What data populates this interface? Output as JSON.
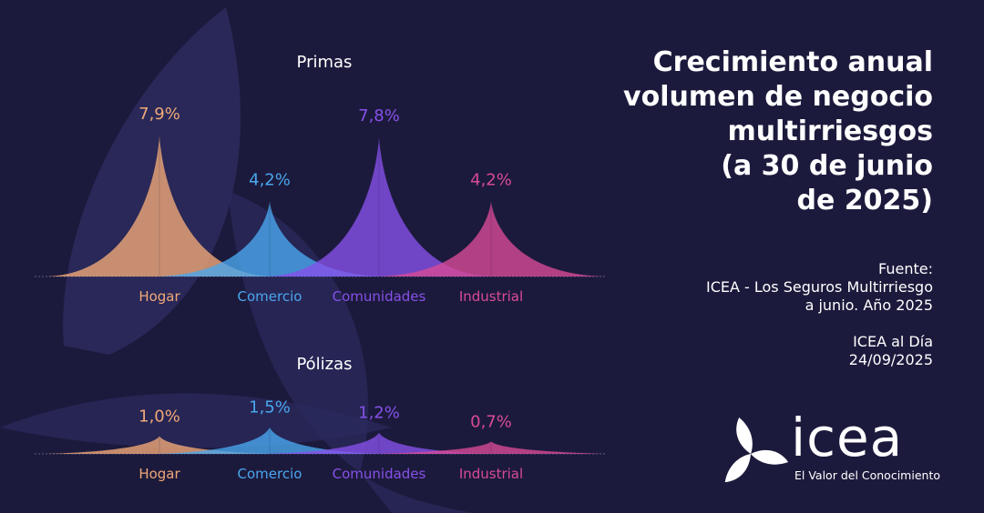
{
  "title_lines": [
    "Crecimiento anual",
    "volumen de negocio",
    "multirriesgos",
    "(a 30 de junio",
    "de 2025)"
  ],
  "source": {
    "label": "Fuente:",
    "line1": "ICEA - Los Seguros Multirriesgo",
    "line2": "a junio. Año 2025",
    "pub": "ICEA al Día",
    "date": "24/09/2025"
  },
  "logo": {
    "word": "icea",
    "tagline": "El Valor del Conocimiento"
  },
  "colors": {
    "Hogar": "#f0a878",
    "Comercio": "#4aa6ee",
    "Comunidades": "#8650e8",
    "Industrial": "#d84a96",
    "background": "#1c1a3c"
  },
  "chart_data": [
    {
      "type": "area",
      "title": "Primas",
      "categories": [
        "Hogar",
        "Comercio",
        "Comunidades",
        "Industrial"
      ],
      "values": [
        7.9,
        4.2,
        7.8,
        4.2
      ],
      "value_labels": [
        "7,9%",
        "4,2%",
        "7,8%",
        "4,2%"
      ],
      "unit": "%"
    },
    {
      "type": "area",
      "title": "Pólizas",
      "categories": [
        "Hogar",
        "Comercio",
        "Comunidades",
        "Industrial"
      ],
      "values": [
        1.0,
        1.5,
        1.2,
        0.7
      ],
      "value_labels": [
        "1,0%",
        "1,5%",
        "1,2%",
        "0,7%"
      ],
      "unit": "%"
    }
  ]
}
